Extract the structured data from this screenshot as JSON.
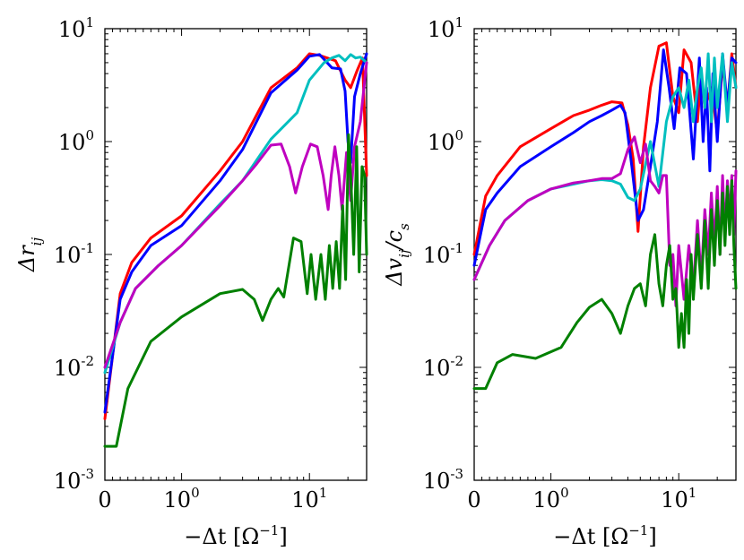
{
  "chart_data": [
    {
      "type": "line",
      "panel": "left",
      "xlabel_parts": [
        "−Δt [Ω",
        "−1",
        "]"
      ],
      "ylabel_parts": [
        "Δr",
        "ij"
      ],
      "xscale": "symlog",
      "yscale": "log",
      "xlim": [
        0,
        28
      ],
      "ylim": [
        0.001,
        10
      ],
      "x_ticks": [
        {
          "value": 0,
          "base": "0",
          "exp": ""
        },
        {
          "value": 1,
          "base": "10",
          "exp": "0"
        },
        {
          "value": 10,
          "base": "10",
          "exp": "1"
        }
      ],
      "y_ticks": [
        {
          "value": 0.001,
          "base": "10",
          "exp": "-3"
        },
        {
          "value": 0.01,
          "base": "10",
          "exp": "-2"
        },
        {
          "value": 0.1,
          "base": "10",
          "exp": "-1"
        },
        {
          "value": 1,
          "base": "10",
          "exp": "0"
        },
        {
          "value": 10,
          "base": "10",
          "exp": "1"
        }
      ],
      "series": [
        {
          "name": "red",
          "color": "#ff0000",
          "x": [
            0,
            0.2,
            0.35,
            0.6,
            1,
            2,
            3,
            5,
            8,
            10,
            12,
            16,
            19,
            21,
            23.5,
            26,
            28
          ],
          "y": [
            0.0035,
            0.045,
            0.085,
            0.14,
            0.22,
            0.55,
            1.0,
            3.0,
            4.5,
            6.0,
            5.8,
            5.2,
            3.5,
            3.0,
            4.2,
            5.5,
            0.5
          ]
        },
        {
          "name": "blue",
          "color": "#0000ff",
          "x": [
            0,
            0.2,
            0.35,
            0.6,
            1,
            2,
            3,
            5,
            8,
            10,
            12,
            15,
            17.5,
            19,
            20,
            21,
            22.5,
            25,
            28
          ],
          "y": [
            0.004,
            0.04,
            0.07,
            0.12,
            0.18,
            0.45,
            0.85,
            2.7,
            4.3,
            5.7,
            5.9,
            4.5,
            4.4,
            2.8,
            1.0,
            0.65,
            2.5,
            4.0,
            6.0
          ]
        },
        {
          "name": "cyan",
          "color": "#00bfbf",
          "x": [
            0,
            0.2,
            0.4,
            0.7,
            1,
            2,
            3,
            5,
            8,
            10,
            13,
            15,
            17,
            19,
            21,
            23,
            25,
            28
          ],
          "y": [
            0.009,
            0.025,
            0.05,
            0.08,
            0.12,
            0.28,
            0.45,
            1.05,
            1.8,
            3.5,
            5.0,
            5.5,
            5.8,
            5.2,
            5.9,
            5.5,
            5.6,
            5.0
          ]
        },
        {
          "name": "magenta",
          "color": "#bf00bf",
          "x": [
            0,
            0.2,
            0.4,
            0.7,
            1,
            2,
            3,
            3.8,
            5,
            6,
            7,
            7.8,
            8.8,
            10.2,
            11.5,
            12.8,
            14,
            14.8,
            15.8,
            17,
            18,
            19.5,
            21,
            22.5,
            25,
            28
          ],
          "y": [
            0.01,
            0.025,
            0.05,
            0.08,
            0.12,
            0.27,
            0.45,
            0.62,
            0.93,
            0.95,
            0.6,
            0.35,
            0.6,
            0.95,
            0.9,
            0.5,
            0.25,
            0.5,
            0.9,
            0.5,
            0.25,
            0.8,
            0.3,
            0.9,
            1.5,
            5.0
          ]
        },
        {
          "name": "green",
          "color": "#008000",
          "x": [
            0,
            0.15,
            0.3,
            0.6,
            1,
            2,
            3,
            3.7,
            4.3,
            5,
            5.7,
            6.3,
            7.5,
            8.6,
            9.6,
            10.3,
            11.2,
            12.3,
            13.3,
            14.3,
            15.2,
            16.2,
            17.2,
            18.2,
            19.2,
            20.2,
            21.2,
            22.2,
            23.4,
            24.5,
            25.8,
            27,
            28
          ],
          "y": [
            0.002,
            0.002,
            0.0065,
            0.017,
            0.028,
            0.045,
            0.049,
            0.04,
            0.026,
            0.04,
            0.05,
            0.042,
            0.14,
            0.13,
            0.045,
            0.1,
            0.04,
            0.1,
            0.04,
            0.12,
            0.05,
            0.13,
            0.05,
            0.27,
            0.06,
            1.15,
            0.4,
            0.1,
            0.9,
            0.07,
            0.6,
            0.5,
            0.1
          ]
        }
      ]
    },
    {
      "type": "line",
      "panel": "right",
      "xlabel_parts": [
        "−Δt [Ω",
        "−1",
        "]"
      ],
      "ylabel_parts": [
        "Δv",
        "ij",
        "/c",
        "s"
      ],
      "xscale": "symlog",
      "yscale": "log",
      "xlim": [
        0,
        28
      ],
      "ylim": [
        0.001,
        10
      ],
      "x_ticks": [
        {
          "value": 0,
          "base": "0",
          "exp": ""
        },
        {
          "value": 1,
          "base": "10",
          "exp": "0"
        },
        {
          "value": 10,
          "base": "10",
          "exp": "1"
        }
      ],
      "y_ticks": [
        {
          "value": 0.001,
          "base": "10",
          "exp": "-3"
        },
        {
          "value": 0.01,
          "base": "10",
          "exp": "-2"
        },
        {
          "value": 0.1,
          "base": "10",
          "exp": "-1"
        },
        {
          "value": 1,
          "base": "10",
          "exp": "0"
        },
        {
          "value": 10,
          "base": "10",
          "exp": "1"
        }
      ],
      "series": [
        {
          "name": "red",
          "color": "#ff0000",
          "x": [
            0,
            0.15,
            0.3,
            0.6,
            1,
            1.5,
            2,
            2.5,
            3,
            3.6,
            4,
            4.4,
            4.8,
            5.3,
            6,
            7,
            8,
            9,
            10,
            11,
            12.5,
            14,
            15,
            16,
            18,
            20,
            22,
            24,
            26,
            28
          ],
          "y": [
            0.1,
            0.33,
            0.5,
            0.9,
            1.3,
            1.7,
            1.9,
            2.1,
            2.25,
            2.2,
            1.4,
            0.7,
            0.16,
            0.9,
            3.0,
            7.0,
            7.5,
            2.5,
            1.8,
            6.5,
            5.0,
            1.5,
            4.0,
            2.0,
            3.0,
            1.2,
            5.0,
            2.0,
            6.0,
            3.0
          ]
        },
        {
          "name": "blue",
          "color": "#0000ff",
          "x": [
            0,
            0.15,
            0.3,
            0.6,
            1,
            1.5,
            2,
            2.5,
            3,
            3.5,
            3.8,
            4.3,
            4.8,
            5.3,
            6,
            6.8,
            7.6,
            8.4,
            9.2,
            10.2,
            11.5,
            13,
            14.5,
            15.5,
            16.5,
            17.5,
            18.5,
            20,
            22,
            24,
            26,
            28
          ],
          "y": [
            0.08,
            0.25,
            0.35,
            0.6,
            0.9,
            1.2,
            1.5,
            1.7,
            1.9,
            2.1,
            1.8,
            0.6,
            0.2,
            0.25,
            0.6,
            1.5,
            6.5,
            3.0,
            1.3,
            4.5,
            4.0,
            0.7,
            5.5,
            1.0,
            3.0,
            0.55,
            4.0,
            1.0,
            6.0,
            2.0,
            5.5,
            5.0
          ]
        },
        {
          "name": "cyan",
          "color": "#00bfbf",
          "x": [
            0,
            0.2,
            0.4,
            0.7,
            1,
            1.5,
            2,
            2.5,
            3,
            3.5,
            4,
            4.5,
            5,
            6,
            7,
            8,
            9,
            10,
            11,
            12,
            13,
            14,
            15,
            16,
            17,
            18,
            19,
            20,
            22,
            24,
            26,
            28
          ],
          "y": [
            0.06,
            0.12,
            0.2,
            0.3,
            0.38,
            0.42,
            0.45,
            0.46,
            0.45,
            0.42,
            0.32,
            0.3,
            0.38,
            1.0,
            0.4,
            1.5,
            2.5,
            3.0,
            2.0,
            3.5,
            1.5,
            3.0,
            4.5,
            2.0,
            6.0,
            1.5,
            5.5,
            2.0,
            6.0,
            1.5,
            5.0,
            3.0
          ]
        },
        {
          "name": "magenta",
          "color": "#bf00bf",
          "x": [
            0,
            0.2,
            0.4,
            0.7,
            1,
            1.5,
            2,
            2.5,
            3,
            3.5,
            4,
            4.5,
            5,
            5.5,
            6,
            6.5,
            7,
            7.5,
            8,
            8.5,
            9,
            9.5,
            10,
            11,
            12,
            13,
            14,
            15,
            16,
            17,
            18,
            19,
            20,
            21,
            22,
            23,
            24,
            25,
            26,
            27,
            28
          ],
          "y": [
            0.06,
            0.12,
            0.2,
            0.3,
            0.38,
            0.43,
            0.45,
            0.47,
            0.47,
            0.52,
            0.85,
            1.1,
            0.65,
            0.95,
            0.45,
            0.4,
            0.35,
            0.5,
            0.5,
            0.08,
            0.1,
            0.035,
            0.12,
            0.04,
            0.12,
            0.05,
            0.2,
            0.06,
            0.25,
            0.1,
            0.35,
            0.12,
            0.4,
            0.1,
            0.5,
            0.15,
            0.45,
            0.2,
            0.5,
            0.15,
            0.55
          ]
        },
        {
          "name": "green",
          "color": "#008000",
          "x": [
            0,
            0.15,
            0.3,
            0.5,
            0.8,
            1.2,
            1.6,
            2,
            2.5,
            3,
            3.5,
            4,
            4.5,
            5,
            5.5,
            6,
            6.5,
            7,
            7.5,
            8,
            8.5,
            9,
            9.5,
            10,
            10.5,
            11,
            11.5,
            12,
            12.5,
            13,
            14,
            15,
            16,
            17,
            18,
            19,
            20,
            21,
            22,
            23,
            24,
            25,
            26,
            27,
            28
          ],
          "y": [
            0.0065,
            0.0065,
            0.011,
            0.013,
            0.012,
            0.015,
            0.025,
            0.034,
            0.04,
            0.03,
            0.02,
            0.035,
            0.05,
            0.055,
            0.035,
            0.1,
            0.15,
            0.055,
            0.035,
            0.08,
            0.12,
            0.04,
            0.05,
            0.015,
            0.03,
            0.015,
            0.06,
            0.02,
            0.1,
            0.04,
            0.15,
            0.05,
            0.2,
            0.05,
            0.25,
            0.08,
            0.3,
            0.1,
            0.35,
            0.12,
            0.4,
            0.15,
            0.45,
            0.12,
            0.05
          ]
        }
      ]
    }
  ]
}
